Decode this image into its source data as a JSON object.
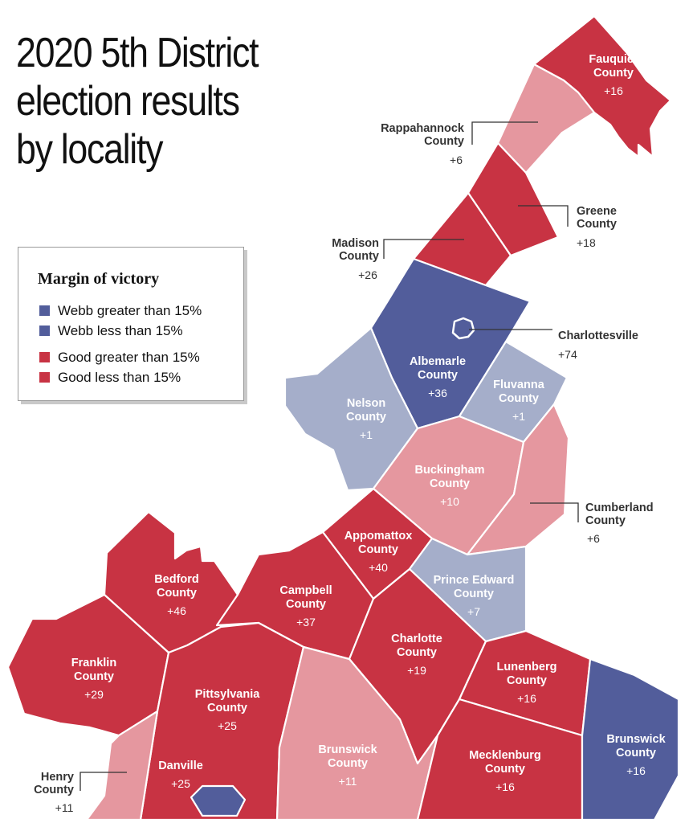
{
  "title": [
    "2020 5th District",
    "election results",
    "by locality"
  ],
  "legend": {
    "title": "Margin of victory",
    "items": [
      {
        "label": "Webb greater than 15%",
        "color": "#525d9b"
      },
      {
        "label": "Webb less than 15%",
        "color": "#525d9b"
      },
      {
        "label": "Good greater than 15%",
        "color": "#c83343"
      },
      {
        "label": "Good less than 15%",
        "color": "#c83343"
      }
    ]
  },
  "colors": {
    "good_strong": "#c83343",
    "good_weak": "#e5979f",
    "webb_strong": "#525d9b",
    "webb_weak": "#a5aeca"
  },
  "localities": {
    "fauquier": {
      "name": [
        "Fauquier",
        "County"
      ],
      "margin": "+16"
    },
    "rappahannock": {
      "name": [
        "Rappahannock",
        "County"
      ],
      "margin": "+6"
    },
    "greene": {
      "name": [
        "Greene",
        "County"
      ],
      "margin": "+18"
    },
    "madison": {
      "name": [
        "Madison",
        "County"
      ],
      "margin": "+26"
    },
    "charlottesville": {
      "name": [
        "Charlottesville"
      ],
      "margin": "+74"
    },
    "albemarle": {
      "name": [
        "Albemarle",
        "County"
      ],
      "margin": "+36"
    },
    "fluvanna": {
      "name": [
        "Fluvanna",
        "County"
      ],
      "margin": "+1"
    },
    "nelson": {
      "name": [
        "Nelson",
        "County"
      ],
      "margin": "+1"
    },
    "buckingham": {
      "name": [
        "Buckingham",
        "County"
      ],
      "margin": "+10"
    },
    "cumberland": {
      "name": [
        "Cumberland",
        "County"
      ],
      "margin": "+6"
    },
    "appomattox": {
      "name": [
        "Appomattox",
        "County"
      ],
      "margin": "+40"
    },
    "prince_edward": {
      "name": [
        "Prince Edward",
        "County"
      ],
      "margin": "+7"
    },
    "bedford": {
      "name": [
        "Bedford",
        "County"
      ],
      "margin": "+46"
    },
    "campbell": {
      "name": [
        "Campbell",
        "County"
      ],
      "margin": "+37"
    },
    "charlotte": {
      "name": [
        "Charlotte",
        "County"
      ],
      "margin": "+19"
    },
    "franklin": {
      "name": [
        "Franklin",
        "County"
      ],
      "margin": "+29"
    },
    "pittsylvania": {
      "name": [
        "Pittsylvania",
        "County"
      ],
      "margin": "+25"
    },
    "lunenberg": {
      "name": [
        "Lunenberg",
        "County"
      ],
      "margin": "+16"
    },
    "halifax_label": {
      "name": [
        "Brunswick",
        "County"
      ],
      "margin": "+11"
    },
    "mecklenburg": {
      "name": [
        "Mecklenburg",
        "County"
      ],
      "margin": "+16"
    },
    "brunswick": {
      "name": [
        "Brunswick",
        "County"
      ],
      "margin": "+16"
    },
    "danville": {
      "name": [
        "Danville"
      ],
      "margin": "+25"
    },
    "henry": {
      "name": [
        "Henry",
        "County"
      ],
      "margin": "+11"
    }
  }
}
